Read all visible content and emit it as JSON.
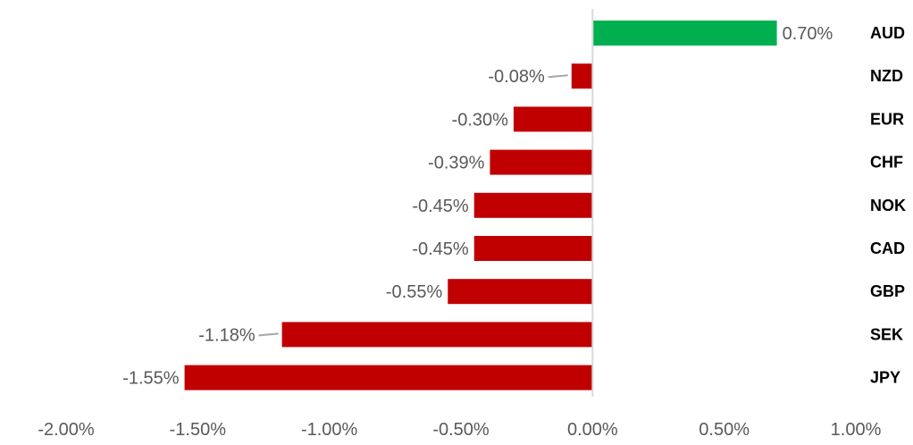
{
  "chart_data": {
    "type": "bar",
    "orientation": "horizontal",
    "categories": [
      "AUD",
      "NZD",
      "EUR",
      "CHF",
      "NOK",
      "CAD",
      "GBP",
      "SEK",
      "JPY"
    ],
    "values": [
      0.7,
      -0.08,
      -0.3,
      -0.39,
      -0.45,
      -0.45,
      -0.55,
      -1.18,
      -1.55
    ],
    "data_labels": [
      "0.70%",
      "-0.08%",
      "-0.30%",
      "-0.39%",
      "-0.45%",
      "-0.45%",
      "-0.55%",
      "-1.18%",
      "-1.55%"
    ],
    "xlim": [
      -2.0,
      1.0
    ],
    "xticks": [
      -2.0,
      -1.5,
      -1.0,
      -0.5,
      0.0,
      0.5,
      1.0
    ],
    "xtick_labels": [
      "-2.00%",
      "-1.50%",
      "-1.00%",
      "-0.50%",
      "0.00%",
      "0.50%",
      "1.00%"
    ],
    "colors": {
      "positive": "#00b050",
      "negative": "#c00000",
      "zero_line": "#d9d9d9",
      "leader_line": "#a6a6a6"
    },
    "grid": false,
    "legend": "none",
    "title": "",
    "xlabel": "",
    "ylabel": ""
  }
}
